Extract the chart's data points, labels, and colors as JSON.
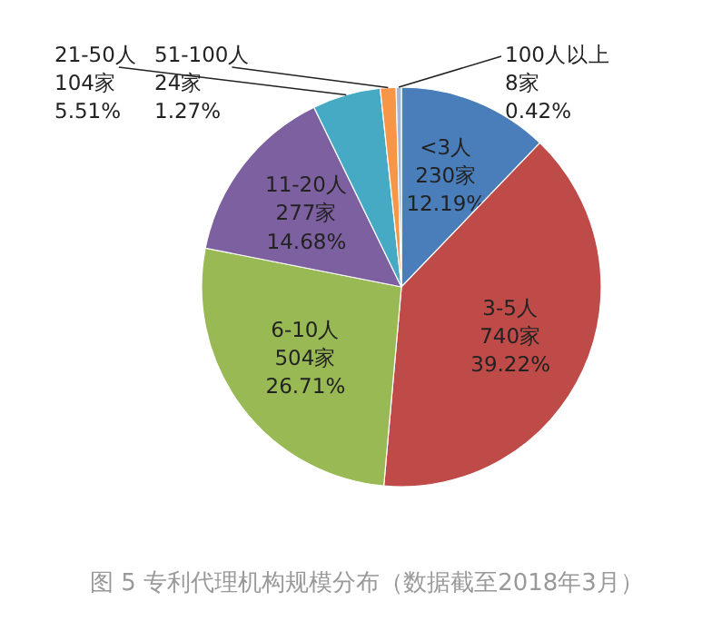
{
  "chart_data": {
    "type": "pie",
    "categories": [
      "<3人",
      "3-5人",
      "6-10人",
      "11-20人",
      "21-50人",
      "51-100人",
      "100人以上"
    ],
    "values": [
      230,
      740,
      504,
      277,
      104,
      24,
      8
    ],
    "value_labels": [
      "230家 12.19%",
      "740家 39.22%",
      "504家 26.71%",
      "277家 14.68%",
      "104家 5.51%",
      "24家 1.27%",
      "8家 0.42%"
    ],
    "colors": [
      "#4a7ebb",
      "#be4b48",
      "#98b954",
      "#7d60a0",
      "#46aac5",
      "#f79646",
      "#a5b8d8"
    ],
    "annotations": [
      "图 5 专利代理机构规模分布（数据截至2018年3月）"
    ]
  }
}
